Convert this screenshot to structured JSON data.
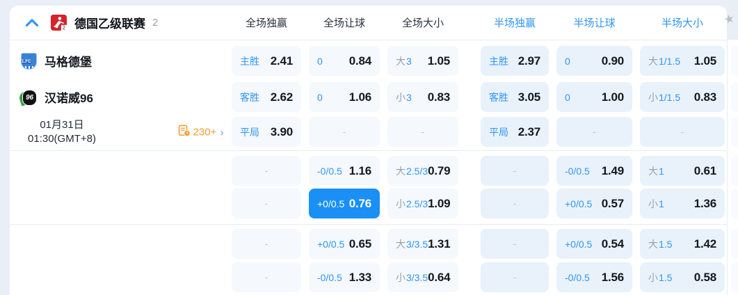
{
  "colors": {
    "accent_blue": "#2e96f3",
    "selected_cell_bg": "#1a90f6",
    "markets_orange": "#f99b30",
    "league_icon_red": "#d5222d",
    "value_text": "#14181f"
  },
  "league_header": {
    "collapse_icon": "chevron-up",
    "name": "德国乙级联赛",
    "count": "2",
    "columns": [
      {
        "label": "全场独赢",
        "half": false
      },
      {
        "label": "全场让球",
        "half": false
      },
      {
        "label": "全场大小",
        "half": false
      },
      {
        "label": "半场独赢",
        "half": true
      },
      {
        "label": "半场让球",
        "half": true
      },
      {
        "label": "半场大小",
        "half": true
      }
    ],
    "pin_icon": "star"
  },
  "match": {
    "home_name": "马格德堡",
    "away_name": "汉诺威96",
    "date_line1": "01月31日",
    "date_line2": "01:30(GMT+8)",
    "more_markets": "230+",
    "more_markets_icon": "markets-list-clock",
    "more_markets_chevron": "›"
  },
  "odds": {
    "dash_char": "-",
    "rows": [
      {
        "cells": [
          {
            "label": "主胜",
            "value": "2.41"
          },
          {
            "label": "0",
            "value": "0.84"
          },
          {
            "prefix": "大",
            "label": "3",
            "value": "1.05"
          },
          {
            "label": "主胜",
            "value": "2.97"
          },
          {
            "label": "0",
            "value": "0.90"
          },
          {
            "prefix": "大",
            "label": "1/1.5",
            "value": "1.05"
          }
        ]
      },
      {
        "cells": [
          {
            "label": "客胜",
            "value": "2.62"
          },
          {
            "label": "0",
            "value": "1.06"
          },
          {
            "prefix": "小",
            "label": "3",
            "value": "0.83"
          },
          {
            "label": "客胜",
            "value": "3.05"
          },
          {
            "label": "0",
            "value": "1.00"
          },
          {
            "prefix": "小",
            "label": "1/1.5",
            "value": "0.83"
          }
        ]
      },
      {
        "cells": [
          {
            "label": "平局",
            "value": "3.90"
          },
          {
            "dash": true
          },
          {
            "dash": true
          },
          {
            "label": "平局",
            "value": "2.37"
          },
          {
            "dash": true
          },
          {
            "dash": true
          }
        ]
      },
      {
        "cells": [
          {
            "dash": true
          },
          {
            "label": "-0/0.5",
            "value": "1.16"
          },
          {
            "prefix": "大",
            "label": "2.5/3",
            "value": "0.79"
          },
          {
            "dash": true
          },
          {
            "label": "-0/0.5",
            "value": "1.49"
          },
          {
            "prefix": "大",
            "label": "1",
            "value": "0.61"
          }
        ]
      },
      {
        "cells": [
          {
            "dash": true
          },
          {
            "label": "+0/0.5",
            "value": "0.76",
            "selected": true
          },
          {
            "prefix": "小",
            "label": "2.5/3",
            "value": "1.09"
          },
          {
            "dash": true
          },
          {
            "label": "+0/0.5",
            "value": "0.57"
          },
          {
            "prefix": "小",
            "label": "1",
            "value": "1.36"
          }
        ]
      },
      {
        "cells": [
          {
            "dash": true
          },
          {
            "label": "+0/0.5",
            "value": "0.65"
          },
          {
            "prefix": "大",
            "label": "3/3.5",
            "value": "1.31"
          },
          {
            "dash": true
          },
          {
            "label": "+0/0.5",
            "value": "0.54"
          },
          {
            "prefix": "大",
            "label": "1.5",
            "value": "1.42"
          }
        ]
      },
      {
        "cells": [
          {
            "dash": true
          },
          {
            "label": "-0/0.5",
            "value": "1.33"
          },
          {
            "prefix": "小",
            "label": "3/3.5",
            "value": "0.64"
          },
          {
            "dash": true
          },
          {
            "label": "-0/0.5",
            "value": "1.56"
          },
          {
            "prefix": "小",
            "label": "1.5",
            "value": "0.58"
          }
        ]
      }
    ]
  }
}
